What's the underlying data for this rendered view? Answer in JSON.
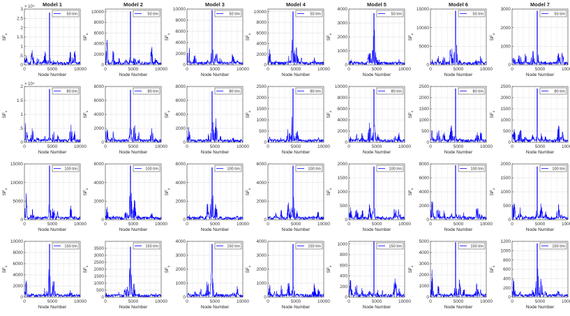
{
  "chart_data": {
    "type": "line",
    "column_titles": [
      "Model 1",
      "Model 2",
      "Model 3",
      "Model 4",
      "Model 5",
      "Model 6",
      "Model 7"
    ],
    "xlabel": "Node Number",
    "ylabel_main": "SF",
    "ylabel_sub": "u",
    "x_ticks": [
      0,
      5000,
      10000
    ],
    "xlim": [
      0,
      10000
    ],
    "line_color": "#0000ff",
    "grid": true,
    "legend_position": "top-right",
    "rows": [
      {
        "legend": "50 t/m",
        "panels": [
          {
            "ylim": [
              0,
              30000
            ],
            "yticks": [
              0,
              5000,
              10000,
              15000,
              20000,
              25000,
              30000
            ],
            "yticklabels": [
              "0",
              ".5",
              "1",
              "1.5",
              "2",
              "2.5",
              "3"
            ],
            "exponent": "× 10⁴",
            "peak": 28000
          },
          {
            "ylim": [
              0,
              10500
            ],
            "yticks": [
              0,
              2000,
              4000,
              6000,
              8000,
              10000
            ],
            "yticklabels": [
              "0",
              "2000",
              "4000",
              "6000",
              "8000",
              "10000"
            ],
            "peak": 10000
          },
          {
            "ylim": [
              0,
              10000
            ],
            "yticks": [
              0,
              2000,
              4000,
              6000,
              8000,
              10000
            ],
            "yticklabels": [
              "0",
              "2000",
              "4000",
              "6000",
              "8000",
              "10000"
            ],
            "peak": 9800
          },
          {
            "ylim": [
              0,
              10500
            ],
            "yticks": [
              0,
              2000,
              4000,
              6000,
              8000,
              10000
            ],
            "yticklabels": [
              "0",
              "2000",
              "4000",
              "6000",
              "8000",
              "10000"
            ],
            "peak": 10000
          },
          {
            "ylim": [
              0,
              4000
            ],
            "yticks": [
              0,
              1000,
              2000,
              3000,
              4000
            ],
            "yticklabels": [
              "0",
              "1000",
              "2000",
              "3000",
              "4000"
            ],
            "peak": 3700
          },
          {
            "ylim": [
              0,
              15000
            ],
            "yticks": [
              0,
              5000,
              10000,
              15000
            ],
            "yticklabels": [
              "0",
              "5000",
              "10000",
              "15000"
            ],
            "peak": 14500
          },
          {
            "ylim": [
              0,
              3000
            ],
            "yticks": [
              0,
              1000,
              2000,
              3000
            ],
            "yticklabels": [
              "0",
              "1000",
              "2000",
              "3000"
            ],
            "peak": 2900
          }
        ]
      },
      {
        "legend": "80 t/m",
        "panels": [
          {
            "ylim": [
              0,
              20000
            ],
            "yticks": [
              0,
              5000,
              10000,
              15000,
              20000
            ],
            "yticklabels": [
              "0",
              ".5",
              "1",
              "1.5",
              "2"
            ],
            "exponent": "× 10⁴",
            "peak": 19000
          },
          {
            "ylim": [
              0,
              8000
            ],
            "yticks": [
              0,
              2000,
              4000,
              6000,
              8000
            ],
            "yticklabels": [
              "0",
              "2000",
              "4000",
              "6000",
              "8000"
            ],
            "peak": 7500
          },
          {
            "ylim": [
              0,
              8000
            ],
            "yticks": [
              0,
              2000,
              4000,
              6000,
              8000
            ],
            "yticklabels": [
              "0",
              "2000",
              "4000",
              "6000",
              "8000"
            ],
            "peak": 7300
          },
          {
            "ylim": [
              0,
              2500
            ],
            "yticks": [
              0,
              500,
              1000,
              1500,
              2000,
              2500
            ],
            "yticklabels": [
              "0",
              "500",
              "1000",
              "1500",
              "2000",
              "2500"
            ],
            "peak": 2400
          },
          {
            "ylim": [
              0,
              10000
            ],
            "yticks": [
              0,
              2000,
              4000,
              6000,
              8000,
              10000
            ],
            "yticklabels": [
              "0",
              "2000",
              "4000",
              "6000",
              "8000",
              "10000"
            ],
            "peak": 9500
          },
          {
            "ylim": [
              0,
              2500
            ],
            "yticks": [
              0,
              500,
              1000,
              1500,
              2000,
              2500
            ],
            "yticklabels": [
              "0",
              "500",
              "1000",
              "1500",
              "2000",
              "2500"
            ],
            "peak": 2400
          },
          {
            "ylim": [
              0,
              2500
            ],
            "yticks": [
              0,
              500,
              1000,
              1500,
              2000,
              2500
            ],
            "yticklabels": [
              "0",
              "500",
              "1000",
              "1500",
              "2000",
              "2500"
            ],
            "peak": 2400
          }
        ]
      },
      {
        "legend": "100 t/m",
        "panels": [
          {
            "ylim": [
              0,
              15000
            ],
            "yticks": [
              0,
              5000,
              10000,
              15000
            ],
            "yticklabels": [
              "0",
              "5000",
              "10000",
              "15000"
            ],
            "peak": 14500
          },
          {
            "ylim": [
              0,
              6000
            ],
            "yticks": [
              0,
              2000,
              4000,
              6000
            ],
            "yticklabels": [
              "0",
              "2000",
              "4000",
              "6000"
            ],
            "peak": 5800
          },
          {
            "ylim": [
              0,
              6000
            ],
            "yticks": [
              0,
              2000,
              4000,
              6000
            ],
            "yticklabels": [
              "0",
              "2000",
              "4000",
              "6000"
            ],
            "peak": 5600
          },
          {
            "ylim": [
              0,
              6000
            ],
            "yticks": [
              0,
              2000,
              4000,
              6000
            ],
            "yticklabels": [
              "0",
              "2000",
              "4000",
              "6000"
            ],
            "peak": 5800
          },
          {
            "ylim": [
              0,
              2000
            ],
            "yticks": [
              0,
              500,
              1000,
              1500,
              2000
            ],
            "yticklabels": [
              "0",
              "500",
              "1000",
              "1500",
              "2000"
            ],
            "peak": 1900
          },
          {
            "ylim": [
              0,
              8000
            ],
            "yticks": [
              0,
              2000,
              4000,
              6000,
              8000
            ],
            "yticklabels": [
              "0",
              "2000",
              "4000",
              "6000",
              "8000"
            ],
            "peak": 7800
          },
          {
            "ylim": [
              0,
              2000
            ],
            "yticks": [
              0,
              500,
              1000,
              1500,
              2000
            ],
            "yticklabels": [
              "0",
              "500",
              "1000",
              "1500",
              "2000"
            ],
            "peak": 1900
          }
        ]
      },
      {
        "legend": "150 t/m",
        "panels": [
          {
            "ylim": [
              0,
              10000
            ],
            "yticks": [
              0,
              2000,
              4000,
              6000,
              8000,
              10000
            ],
            "yticklabels": [
              "0",
              "2000",
              "4000",
              "6000",
              "8000",
              "10000"
            ],
            "peak": 9500
          },
          {
            "ylim": [
              0,
              4000
            ],
            "yticks": [
              0,
              500,
              1000,
              1500,
              2000,
              2500,
              3000,
              3500
            ],
            "yticklabels": [
              "0",
              "500",
              "1000",
              "1500",
              "2000",
              "2500",
              "3000",
              "3500"
            ],
            "peak": 3600
          },
          {
            "ylim": [
              0,
              4000
            ],
            "yticks": [
              0,
              1000,
              2000,
              3000,
              4000
            ],
            "yticklabels": [
              "0",
              "1000",
              "2000",
              "3000",
              "4000"
            ],
            "peak": 3800
          },
          {
            "ylim": [
              0,
              4000
            ],
            "yticks": [
              0,
              1000,
              2000,
              3000,
              4000
            ],
            "yticklabels": [
              "0",
              "1000",
              "2000",
              "3000",
              "4000"
            ],
            "peak": 3800
          },
          {
            "ylim": [
              0,
              1050
            ],
            "yticks": [
              0,
              200,
              400,
              600,
              800,
              1000
            ],
            "yticklabels": [
              "0",
              "200",
              "400",
              "600",
              "800",
              "1000"
            ],
            "peak": 1050
          },
          {
            "ylim": [
              0,
              5000
            ],
            "yticks": [
              0,
              1000,
              2000,
              3000,
              4000,
              5000
            ],
            "yticklabels": [
              "0",
              "1000",
              "2000",
              "3000",
              "4000",
              "5000"
            ],
            "peak": 4900
          },
          {
            "ylim": [
              0,
              1200
            ],
            "yticks": [
              0,
              200,
              400,
              600,
              800,
              1000,
              1200
            ],
            "yticklabels": [
              "0",
              "200",
              "400",
              "600",
              "800",
              "1000",
              "1200"
            ],
            "peak": 1150
          }
        ]
      }
    ]
  }
}
